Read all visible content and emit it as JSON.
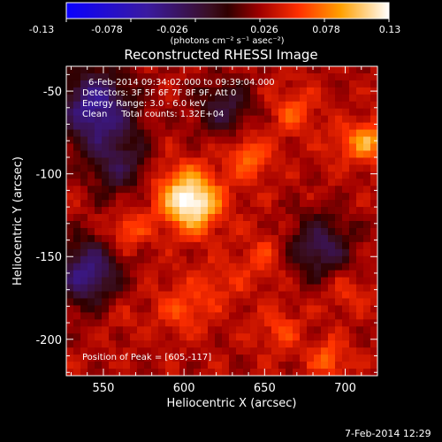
{
  "chart_data": {
    "type": "heatmap",
    "title": "Reconstructed RHESSI Image",
    "xlabel": "Heliocentric X (arcsec)",
    "ylabel": "Heliocentric Y (arcsec)",
    "xlim": [
      527,
      720
    ],
    "ylim": [
      -222,
      -35
    ],
    "xticks": [
      550,
      600,
      650,
      700
    ],
    "yticks": [
      -50,
      -100,
      -150,
      -200
    ],
    "colorbar": {
      "ticks": [
        "-0.13",
        "-0.078",
        "-0.026",
        "0.026",
        "0.078",
        "0.13"
      ],
      "range": [
        -0.13,
        0.13
      ],
      "unit": "(photons cm⁻² s⁻¹ asec⁻²)"
    },
    "annotations": [
      "6-Feb-2014 09:34:02.000 to 09:39:04.000",
      "Detectors: 3F 5F 6F 7F 8F 9F, Att 0",
      "Energy Range: 3.0 - 6.0 keV",
      "Clean     Total counts: 1.32E+04"
    ],
    "peak_label": "Position of Peak = [605,-117]",
    "peak": [
      605,
      -117
    ],
    "peak_value": 0.13,
    "background_level": 0.03,
    "blobs": [
      {
        "x": 605,
        "y": -117,
        "value": 0.13,
        "width": 12
      },
      {
        "x": 590,
        "y": -108,
        "value": 0.05,
        "width": 14
      },
      {
        "x": 545,
        "y": -60,
        "value": -0.06,
        "width": 16
      },
      {
        "x": 560,
        "y": -95,
        "value": -0.02,
        "width": 14
      },
      {
        "x": 540,
        "y": -160,
        "value": -0.05,
        "width": 14
      },
      {
        "x": 565,
        "y": -135,
        "value": 0.07,
        "width": 8
      },
      {
        "x": 640,
        "y": -90,
        "value": 0.07,
        "width": 10
      },
      {
        "x": 668,
        "y": -62,
        "value": 0.06,
        "width": 10
      },
      {
        "x": 700,
        "y": -82,
        "value": 0.05,
        "width": 10
      },
      {
        "x": 715,
        "y": -80,
        "value": 0.085,
        "width": 8
      },
      {
        "x": 685,
        "y": -145,
        "value": -0.03,
        "width": 14
      },
      {
        "x": 650,
        "y": -150,
        "value": 0.055,
        "width": 10
      },
      {
        "x": 700,
        "y": -170,
        "value": 0.055,
        "width": 10
      },
      {
        "x": 600,
        "y": -180,
        "value": 0.06,
        "width": 12
      },
      {
        "x": 625,
        "y": -165,
        "value": 0.05,
        "width": 10
      },
      {
        "x": 660,
        "y": -195,
        "value": 0.055,
        "width": 10
      },
      {
        "x": 690,
        "y": -212,
        "value": 0.07,
        "width": 8
      },
      {
        "x": 560,
        "y": -185,
        "value": 0.04,
        "width": 10
      },
      {
        "x": 625,
        "y": -60,
        "value": -0.02,
        "width": 12
      }
    ]
  },
  "footer": {
    "date": "7-Feb-2014 12:29"
  }
}
